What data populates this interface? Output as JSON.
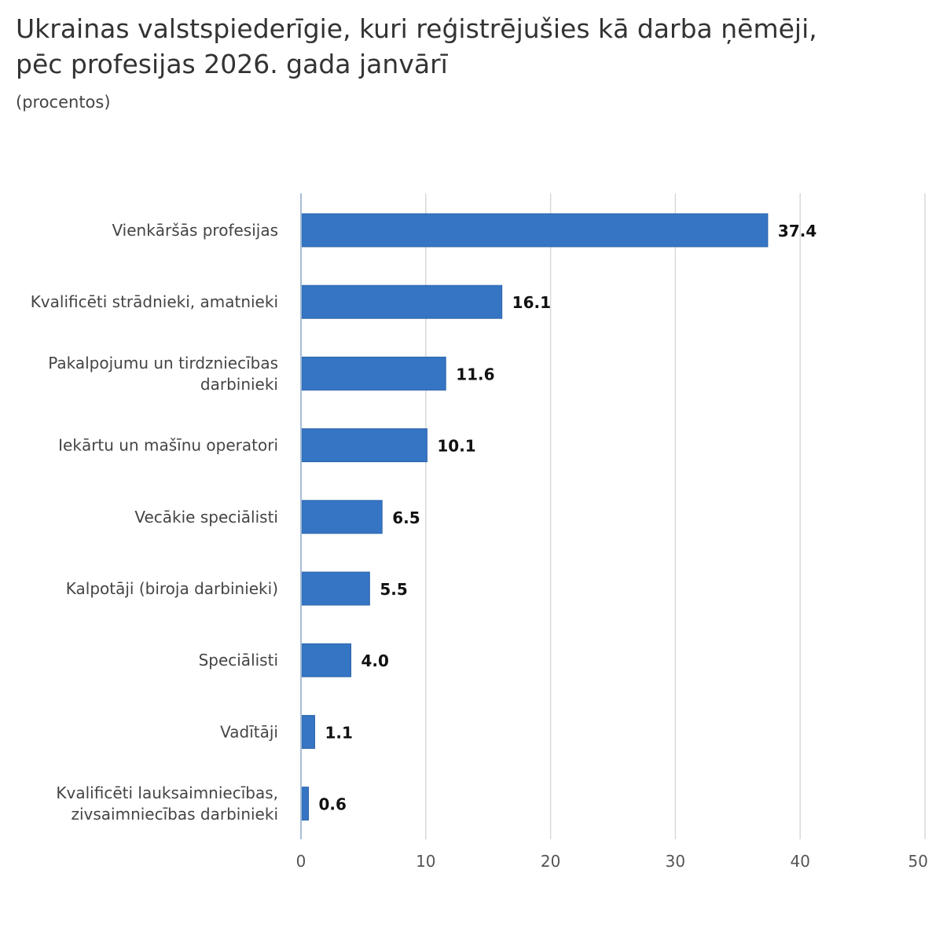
{
  "header": {
    "title_lines": [
      "Ukrainas valstspiederīgie, kuri reģistrējušies kā darba ņēmēji,",
      "pēc profesijas 2026. gada janvārī"
    ],
    "subtitle": "(procentos)"
  },
  "chart_data": {
    "type": "bar",
    "orientation": "horizontal",
    "title": "Ukrainas valstspiederīgie, kuri reģistrējušies kā darba ņēmēji, pēc profesijas 2026. gada janvārī",
    "subtitle": "(procentos)",
    "categories": [
      "Vienkāršās profesijas",
      "Kvalificēti strādnieki, amatnieki",
      "Pakalpojumu un tirdzniecības darbinieki",
      "Iekārtu un mašīnu operatori",
      "Vecākie speciālisti",
      "Kalpotāji (biroja darbinieki)",
      "Speciālisti",
      "Vadītāji",
      "Kvalificēti lauksaimniecības, zivsaimniecības darbinieki"
    ],
    "category_label_lines": [
      [
        "Vienkāršās profesijas"
      ],
      [
        "Kvalificēti strādnieki, amatnieki"
      ],
      [
        "Pakalpojumu un tirdzniecības",
        "darbinieki"
      ],
      [
        "Iekārtu un mašīnu operatori"
      ],
      [
        "Vecākie speciālisti"
      ],
      [
        "Kalpotāji (biroja darbinieki)"
      ],
      [
        "Speciālisti"
      ],
      [
        "Vadītāji"
      ],
      [
        "Kvalificēti lauksaimniecības,",
        "zivsaimniecības darbinieki"
      ]
    ],
    "values": [
      37.4,
      16.1,
      11.6,
      10.1,
      6.5,
      5.5,
      4.0,
      1.1,
      0.6
    ],
    "value_labels": [
      "37.4",
      "16.1",
      "11.6",
      "10.1",
      "6.5",
      "5.5",
      "4.0",
      "1.1",
      "0.6"
    ],
    "xlim": [
      0,
      50
    ],
    "xticks": [
      0,
      10,
      20,
      30,
      40,
      50
    ],
    "xtick_labels": [
      "0",
      "10",
      "20",
      "30",
      "40",
      "50"
    ],
    "grid": true,
    "legend": false,
    "bar_color": "#3575c4",
    "bar_border_color": "#2a62a8",
    "grid_color": "#d9d9d9",
    "axis_color": "#a6bcd6"
  }
}
